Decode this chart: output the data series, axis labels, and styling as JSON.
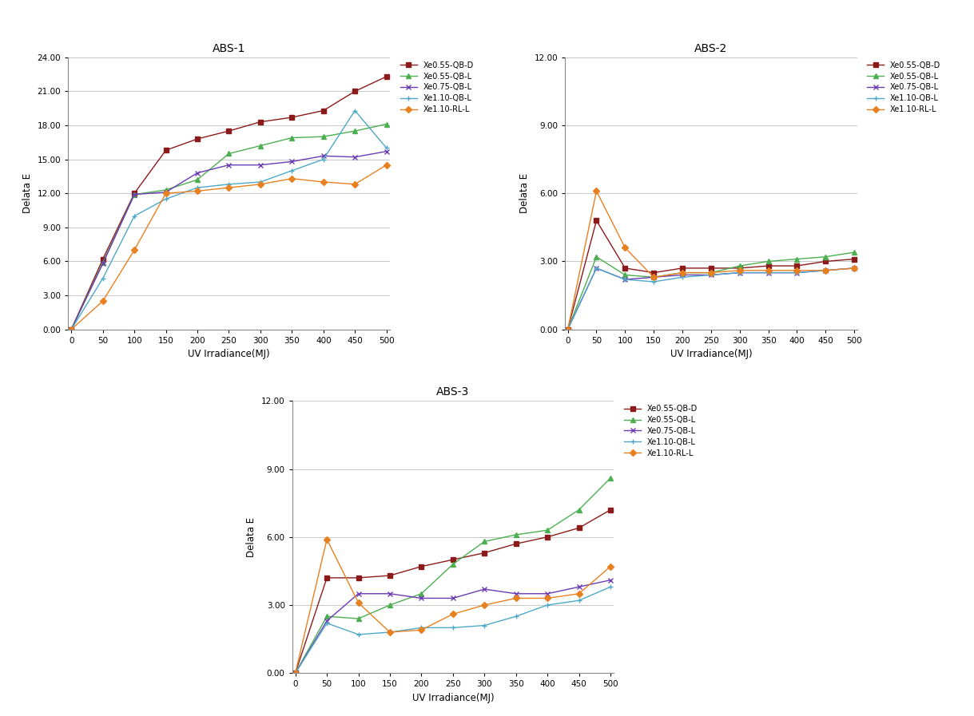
{
  "x": [
    0,
    50,
    100,
    150,
    200,
    250,
    300,
    350,
    400,
    450,
    500
  ],
  "abs1": {
    "title": "ABS-1",
    "ylim": [
      0,
      24
    ],
    "yticks": [
      0,
      3,
      6,
      9,
      12,
      15,
      18,
      21,
      24
    ],
    "series": {
      "Xe0.55-QB-D": {
        "color": "#8B1A1A",
        "marker": "s",
        "data": [
          0,
          6.2,
          12.0,
          15.8,
          16.8,
          17.5,
          18.3,
          18.7,
          19.3,
          21.0,
          22.3
        ]
      },
      "Xe0.55-QB-L": {
        "color": "#4CAF50",
        "marker": "^",
        "data": [
          0,
          5.9,
          11.9,
          12.3,
          13.2,
          15.5,
          16.2,
          16.9,
          17.0,
          17.5,
          18.1
        ]
      },
      "Xe0.75-QB-L": {
        "color": "#6A3BB5",
        "marker": "x",
        "data": [
          0,
          5.8,
          11.9,
          12.1,
          13.8,
          14.5,
          14.5,
          14.8,
          15.3,
          15.2,
          15.7
        ]
      },
      "Xe1.10-QB-L": {
        "color": "#4EA8C8",
        "marker": "+",
        "data": [
          0,
          4.5,
          10.0,
          11.5,
          12.5,
          12.8,
          13.0,
          14.0,
          15.0,
          19.3,
          16.0
        ]
      },
      "Xe1.10-RL-L": {
        "color": "#E88020",
        "marker": "D",
        "data": [
          0,
          2.5,
          7.0,
          12.0,
          12.2,
          12.5,
          12.8,
          13.3,
          13.0,
          12.8,
          14.5
        ]
      }
    }
  },
  "abs2": {
    "title": "ABS-2",
    "ylim": [
      0,
      12
    ],
    "yticks": [
      0,
      3,
      6,
      9,
      12
    ],
    "series": {
      "Xe0.55-QB-D": {
        "color": "#8B1A1A",
        "marker": "s",
        "data": [
          0,
          4.8,
          2.7,
          2.5,
          2.7,
          2.7,
          2.7,
          2.8,
          2.8,
          3.0,
          3.1
        ]
      },
      "Xe0.55-QB-L": {
        "color": "#4CAF50",
        "marker": "^",
        "data": [
          0,
          3.2,
          2.4,
          2.3,
          2.5,
          2.5,
          2.8,
          3.0,
          3.1,
          3.2,
          3.4
        ]
      },
      "Xe0.75-QB-L": {
        "color": "#6A3BB5",
        "marker": "x",
        "data": [
          0,
          2.7,
          2.2,
          2.3,
          2.4,
          2.4,
          2.5,
          2.5,
          2.5,
          2.6,
          2.7
        ]
      },
      "Xe1.10-QB-L": {
        "color": "#4EA8C8",
        "marker": "+",
        "data": [
          0,
          2.7,
          2.2,
          2.1,
          2.3,
          2.4,
          2.5,
          2.5,
          2.5,
          2.6,
          2.7
        ]
      },
      "Xe1.10-RL-L": {
        "color": "#E88020",
        "marker": "D",
        "data": [
          0,
          6.1,
          3.6,
          2.3,
          2.5,
          2.5,
          2.6,
          2.6,
          2.6,
          2.6,
          2.7
        ]
      }
    }
  },
  "abs3": {
    "title": "ABS-3",
    "ylim": [
      0,
      12
    ],
    "yticks": [
      0,
      3,
      6,
      9,
      12
    ],
    "series": {
      "Xe0.55-QB-D": {
        "color": "#8B1A1A",
        "marker": "s",
        "data": [
          0,
          4.2,
          4.2,
          4.3,
          4.7,
          5.0,
          5.3,
          5.7,
          6.0,
          6.4,
          7.2
        ]
      },
      "Xe0.55-QB-L": {
        "color": "#4CAF50",
        "marker": "^",
        "data": [
          0,
          2.5,
          2.4,
          3.0,
          3.5,
          4.8,
          5.8,
          6.1,
          6.3,
          7.2,
          8.6
        ]
      },
      "Xe0.75-QB-L": {
        "color": "#6A3BB5",
        "marker": "x",
        "data": [
          0,
          2.3,
          3.5,
          3.5,
          3.3,
          3.3,
          3.7,
          3.5,
          3.5,
          3.8,
          4.1
        ]
      },
      "Xe1.10-QB-L": {
        "color": "#4EA8C8",
        "marker": "+",
        "data": [
          0,
          2.2,
          1.7,
          1.8,
          2.0,
          2.0,
          2.1,
          2.5,
          3.0,
          3.2,
          3.8
        ]
      },
      "Xe1.10-RL-L": {
        "color": "#E88020",
        "marker": "D",
        "data": [
          0,
          5.9,
          3.1,
          1.8,
          1.9,
          2.6,
          3.0,
          3.3,
          3.3,
          3.5,
          4.7
        ]
      }
    }
  },
  "xlabel": "UV Irradiance(MJ)",
  "ylabel": "Delata E",
  "xticks": [
    0,
    50,
    100,
    150,
    200,
    250,
    300,
    350,
    400,
    450,
    500
  ],
  "fig_width": 12.19,
  "fig_height": 8.97,
  "fig_dpi": 100
}
